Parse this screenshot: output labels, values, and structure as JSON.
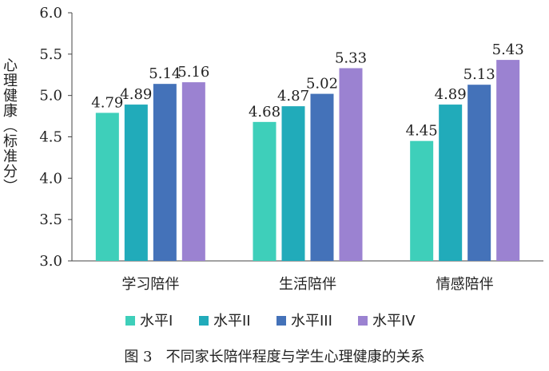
{
  "caption": "图 3   不同家长陪伴程度与学生心理健康的关系",
  "chart_data": {
    "type": "bar",
    "ylabel": "心理健康（标准分）",
    "ylim": [
      3.0,
      6.0
    ],
    "yticks": [
      "3.0",
      "3.5",
      "4.0",
      "4.5",
      "5.0",
      "5.5",
      "6.0"
    ],
    "categories": [
      "学习陪伴",
      "生活陪伴",
      "情感陪伴"
    ],
    "series": [
      {
        "name": "水平I",
        "color": "#3ECFBA",
        "values": [
          4.79,
          4.68,
          4.45
        ]
      },
      {
        "name": "水平II",
        "color": "#21ABBA",
        "values": [
          4.89,
          4.87,
          4.89
        ]
      },
      {
        "name": "水平III",
        "color": "#4472B9",
        "values": [
          5.14,
          5.02,
          5.13
        ]
      },
      {
        "name": "水平IV",
        "color": "#9B82D1",
        "values": [
          5.16,
          5.33,
          5.43
        ]
      }
    ],
    "legend": "bottom",
    "grid": false
  }
}
